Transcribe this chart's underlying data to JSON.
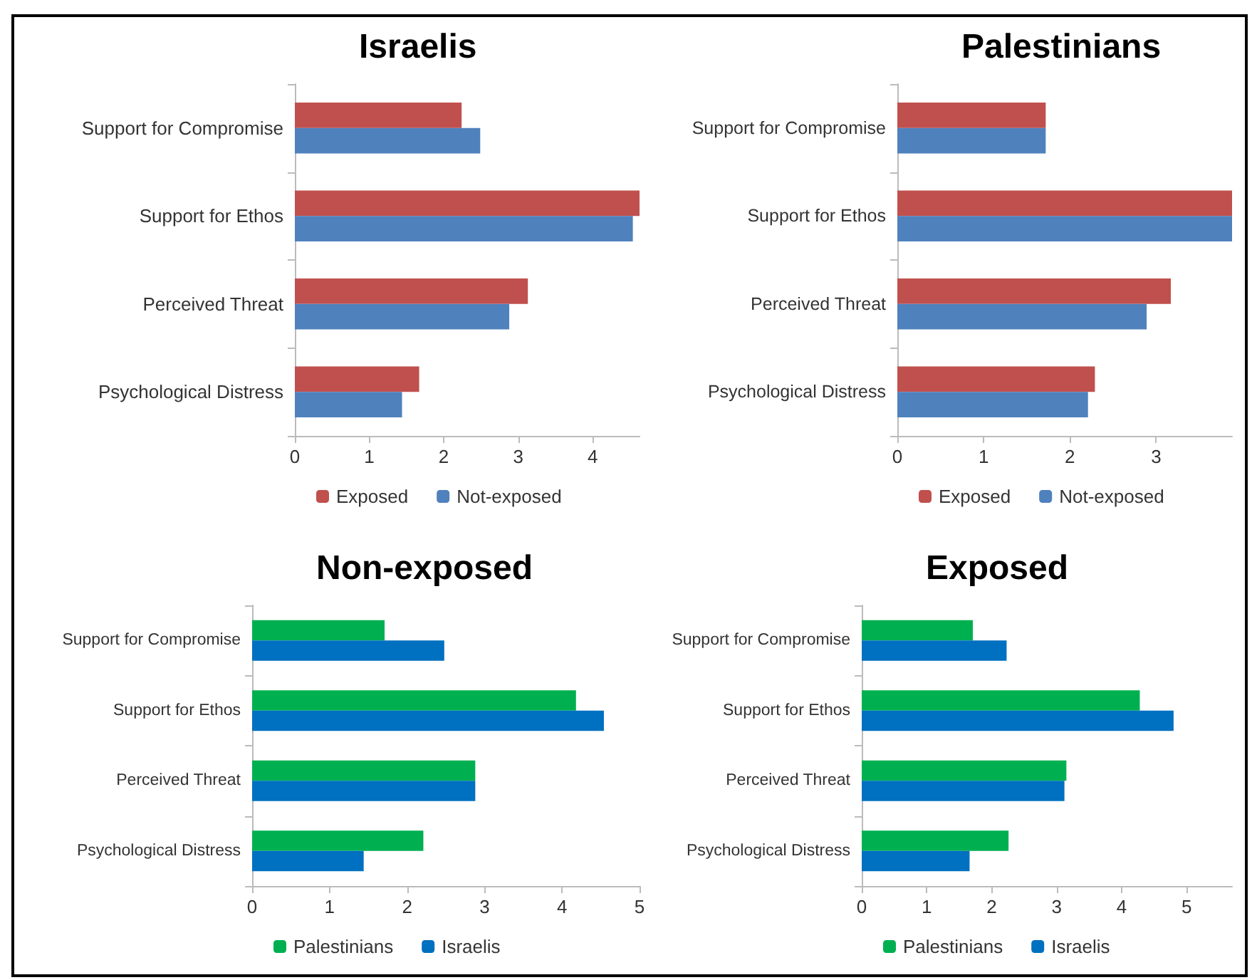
{
  "chart_data": [
    {
      "type": "bar",
      "orientation": "horizontal",
      "title": "Israelis",
      "categories": [
        "Support for Compromise",
        "Support for Ethos",
        "Perceived Threat",
        "Psychological Distress"
      ],
      "series": [
        {
          "name": "Exposed",
          "color": "#c0504d",
          "values": [
            2.24,
            4.63,
            3.13,
            1.67
          ]
        },
        {
          "name": "Not-exposed",
          "color": "#4f81bd",
          "values": [
            2.49,
            4.54,
            2.88,
            1.44
          ]
        }
      ],
      "xlim": [
        0,
        4.63
      ],
      "xticks": [
        0,
        1,
        2,
        3,
        4
      ],
      "legend": "bottom",
      "grid": false
    },
    {
      "type": "bar",
      "orientation": "horizontal",
      "title": "Palestinians",
      "categories": [
        "Support for Compromise",
        "Support for Ethos",
        "Perceived Threat",
        "Psychological Distress"
      ],
      "series": [
        {
          "name": "Exposed",
          "color": "#c0504d",
          "values": [
            1.72,
            3.88,
            3.17,
            2.29
          ]
        },
        {
          "name": "Not-exposed",
          "color": "#4f81bd",
          "values": [
            1.72,
            3.88,
            2.89,
            2.21
          ]
        }
      ],
      "xlim": [
        0,
        3.88
      ],
      "xticks": [
        0,
        1,
        2,
        3
      ],
      "legend": "bottom",
      "grid": false
    },
    {
      "type": "bar",
      "orientation": "horizontal",
      "title": "Non-exposed",
      "categories": [
        "Support for Compromise",
        "Support for Ethos",
        "Perceived Threat",
        "Psychological Distress"
      ],
      "series": [
        {
          "name": "Palestinians",
          "color": "#00b050",
          "values": [
            1.71,
            4.18,
            2.88,
            2.21
          ]
        },
        {
          "name": "Israelis",
          "color": "#0070c0",
          "values": [
            2.48,
            4.54,
            2.88,
            1.44
          ]
        }
      ],
      "xlim": [
        0,
        5
      ],
      "xticks": [
        0,
        1,
        2,
        3,
        4,
        5
      ],
      "legend": "bottom",
      "grid": false
    },
    {
      "type": "bar",
      "orientation": "horizontal",
      "title": "Exposed",
      "categories": [
        "Support for Compromise",
        "Support for Ethos",
        "Perceived Threat",
        "Psychological Distress"
      ],
      "series": [
        {
          "name": "Palestinians",
          "color": "#00b050",
          "values": [
            1.71,
            4.28,
            3.15,
            2.26
          ]
        },
        {
          "name": "Israelis",
          "color": "#0070c0",
          "values": [
            2.23,
            4.8,
            3.12,
            1.66
          ]
        }
      ],
      "xlim": [
        0,
        5.7
      ],
      "xticks": [
        0,
        1,
        2,
        3,
        4,
        5
      ],
      "legend": "bottom",
      "grid": false
    }
  ]
}
